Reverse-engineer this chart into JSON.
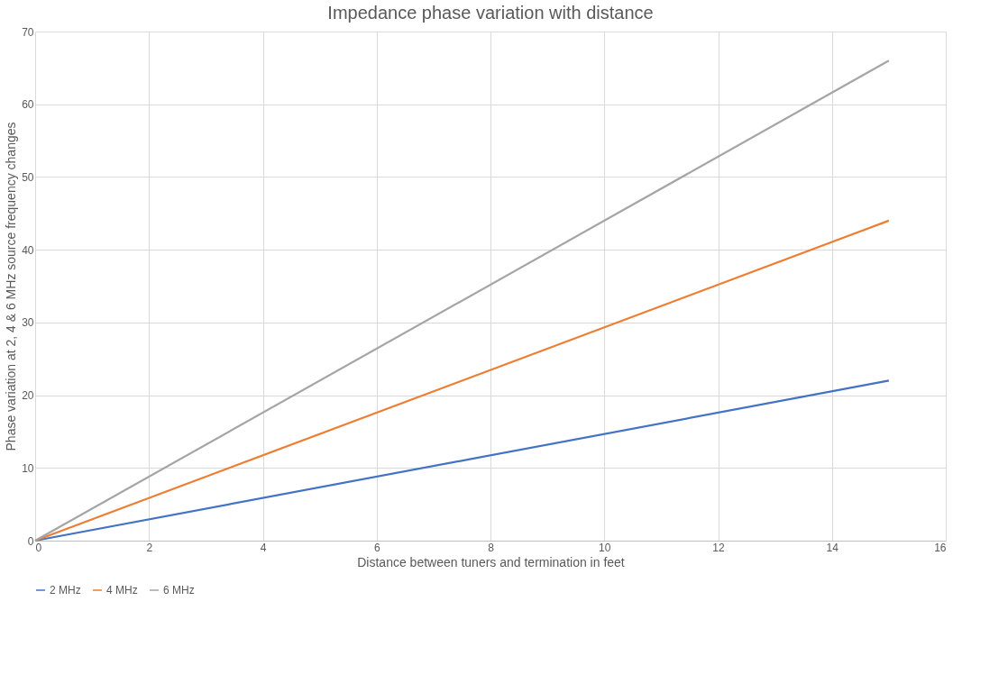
{
  "chart_data": {
    "type": "line",
    "title": "Impedance  phase variation with distance",
    "xlabel": "Distance between tuners and termination in feet",
    "ylabel": "Phase variation at 2, 4 & 6 MHz source frequency changes",
    "x": [
      0,
      15
    ],
    "series": [
      {
        "name": "2 MHz",
        "color": "#4472c4",
        "values": [
          0,
          22
        ]
      },
      {
        "name": "4 MHz",
        "color": "#ed7d31",
        "values": [
          0,
          44
        ]
      },
      {
        "name": "6 MHz",
        "color": "#a5a5a5",
        "values": [
          0,
          66
        ]
      }
    ],
    "xlim": [
      0,
      16
    ],
    "xticks": [
      0,
      2,
      4,
      6,
      8,
      10,
      12,
      14,
      16
    ],
    "ylim": [
      0,
      70
    ],
    "yticks": [
      0,
      10,
      20,
      30,
      40,
      50,
      60,
      70
    ],
    "grid": true,
    "legend": "bottom",
    "marker": "none",
    "line_style": "solid"
  }
}
